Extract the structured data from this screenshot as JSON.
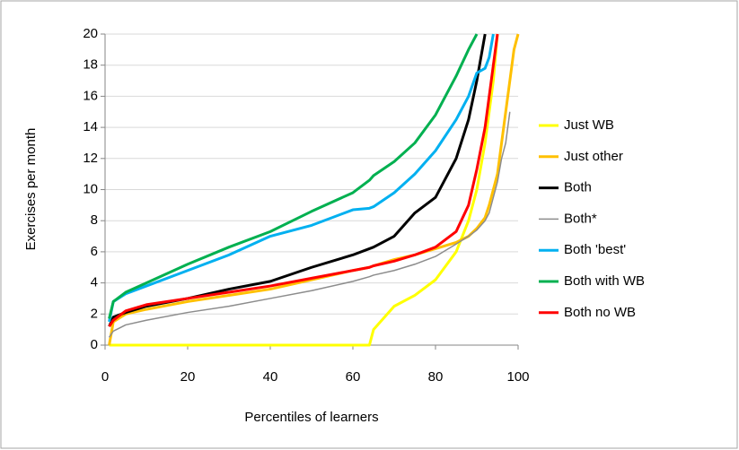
{
  "chart_data": {
    "type": "line",
    "xlabel": "Percentiles of learners",
    "ylabel": "Exercises per month",
    "x": [
      1,
      2,
      5,
      10,
      20,
      30,
      40,
      50,
      60,
      64,
      65,
      70,
      75,
      80,
      85,
      88,
      90,
      92,
      93,
      94,
      95,
      96,
      97,
      98,
      99,
      100
    ],
    "xlim": [
      0,
      100
    ],
    "xticks": [
      0,
      20,
      40,
      60,
      80,
      100
    ],
    "ylim": [
      0,
      20
    ],
    "yticks": [
      0,
      2,
      4,
      6,
      8,
      10,
      12,
      14,
      16,
      18,
      20
    ],
    "grid": true,
    "legend": "right",
    "series": [
      {
        "name": "Just WB",
        "color": "#ffff00",
        "line_width": 3,
        "values": [
          0,
          0,
          0,
          0,
          0,
          0,
          0,
          0,
          0,
          0,
          1,
          2.5,
          3.2,
          4.2,
          6,
          8,
          10,
          13,
          15,
          17,
          20,
          null,
          null,
          null,
          null,
          null
        ]
      },
      {
        "name": "Just other",
        "color": "#ffc000",
        "line_width": 3,
        "values": [
          0,
          1.5,
          2,
          2.3,
          2.8,
          3.2,
          3.6,
          4.2,
          4.8,
          5,
          5.1,
          5.5,
          5.8,
          6.2,
          6.6,
          7,
          7.5,
          8.2,
          9,
          10,
          11,
          13,
          15,
          17,
          19,
          20
        ]
      },
      {
        "name": "Both",
        "color": "#000000",
        "line_width": 3,
        "values": [
          1.2,
          1.8,
          2.1,
          2.5,
          3,
          3.6,
          4.1,
          5,
          5.8,
          6.2,
          6.3,
          7,
          8.5,
          9.5,
          12,
          14.5,
          17,
          20,
          null,
          null,
          null,
          null,
          null,
          null,
          null,
          null
        ]
      },
      {
        "name": "Both*",
        "color": "#8c8c8c",
        "line_width": 1.5,
        "values": [
          0.5,
          0.9,
          1.3,
          1.6,
          2.1,
          2.5,
          3,
          3.5,
          4.1,
          4.4,
          4.5,
          4.8,
          5.2,
          5.7,
          6.5,
          7,
          7.4,
          8,
          8.5,
          9.5,
          10.5,
          12,
          13,
          15,
          null,
          null
        ]
      },
      {
        "name": "Both 'best'",
        "color": "#00b0f0",
        "line_width": 3,
        "values": [
          1.5,
          2.8,
          3.3,
          3.8,
          4.8,
          5.8,
          7,
          7.7,
          8.7,
          8.8,
          8.9,
          9.8,
          11,
          12.5,
          14.5,
          16,
          17.5,
          17.8,
          18.5,
          20,
          null,
          null,
          null,
          null,
          null,
          null
        ]
      },
      {
        "name": "Both with WB",
        "color": "#00b050",
        "line_width": 3,
        "values": [
          1.7,
          2.8,
          3.4,
          4,
          5.2,
          6.3,
          7.3,
          8.6,
          9.8,
          10.6,
          10.9,
          11.8,
          13,
          14.8,
          17.3,
          19,
          20,
          null,
          null,
          null,
          null,
          null,
          null,
          null,
          null,
          null
        ]
      },
      {
        "name": "Both no WB",
        "color": "#ff0000",
        "line_width": 3,
        "values": [
          1.2,
          1.6,
          2.2,
          2.6,
          3,
          3.4,
          3.8,
          4.3,
          4.8,
          5,
          5.1,
          5.4,
          5.8,
          6.3,
          7.3,
          9,
          11.3,
          14,
          16,
          18,
          20,
          null,
          null,
          null,
          null,
          null
        ]
      }
    ]
  }
}
